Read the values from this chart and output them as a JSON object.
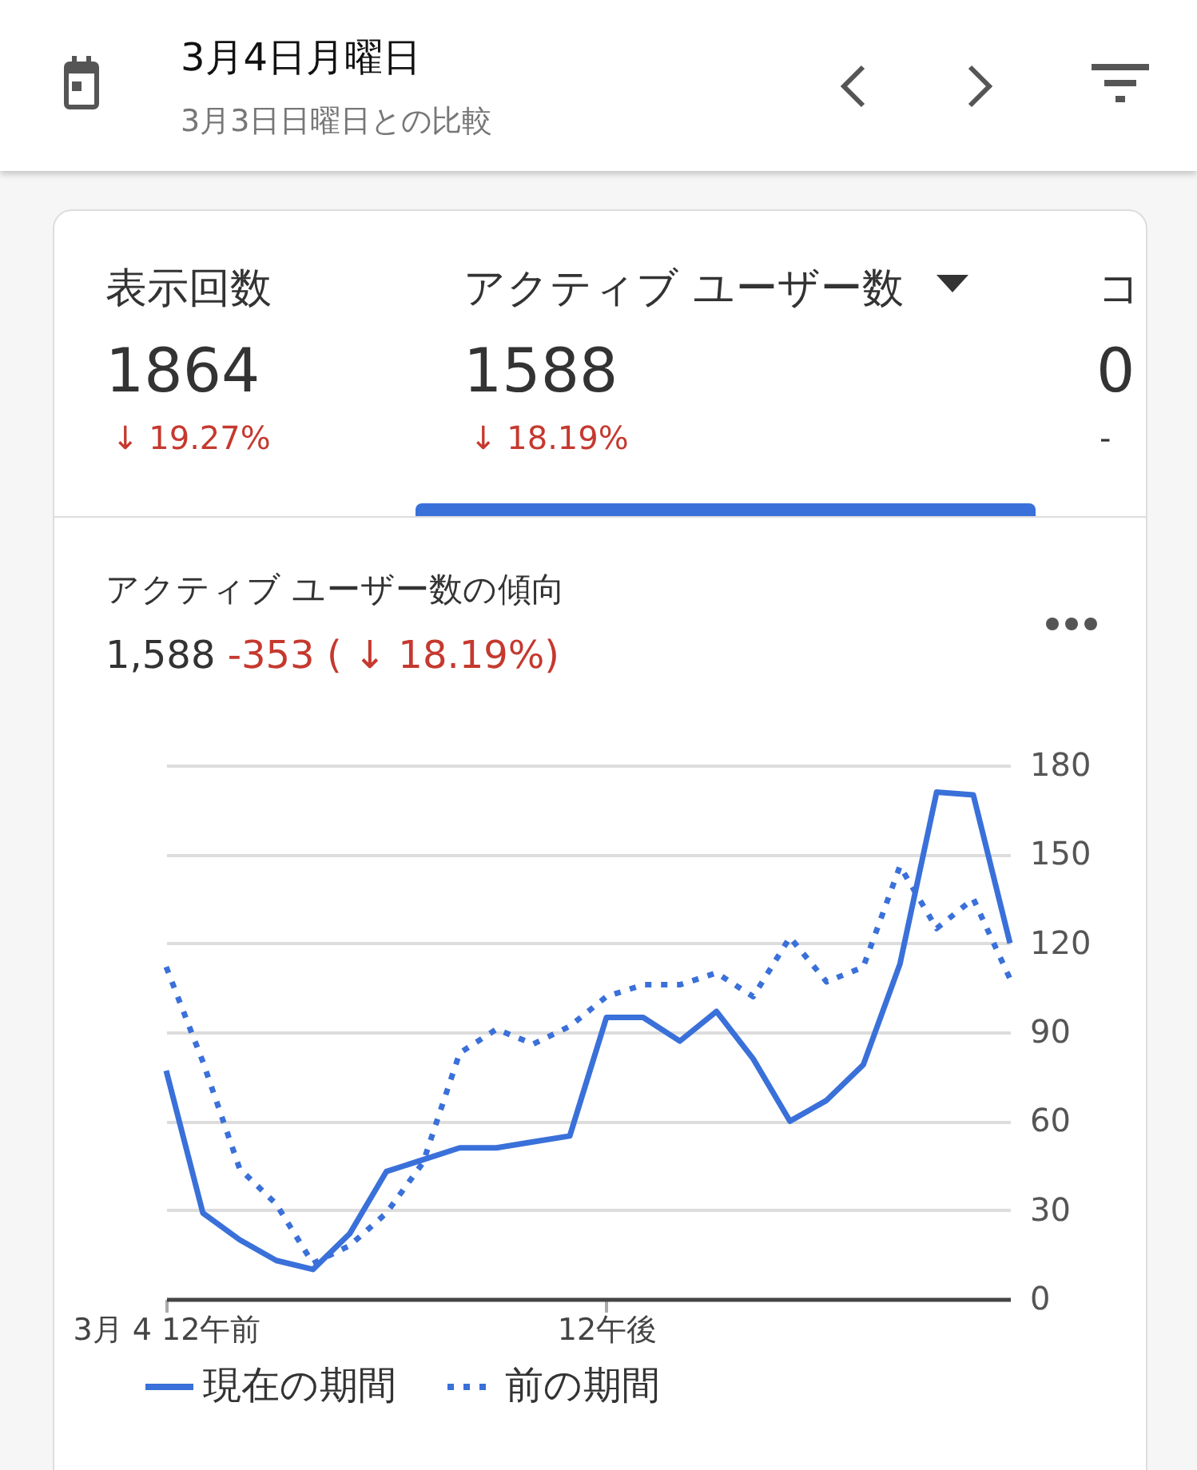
{
  "chart_data": {
    "type": "line",
    "title": "アクティブ ユーザー数の傾向",
    "subtitle": "1,588 -353 ( ↓ 18.19%)",
    "annotations": [
      "3月4日月曜日",
      "3月3日日曜日との比較",
      "表示回数",
      "1864",
      "↓ 19.27%",
      "アクティブ ユーザー数",
      "1588",
      "↓ 18.19%",
      "コ",
      "0",
      "-"
    ],
    "categories": [
      "3月 4 12午前",
      null,
      null,
      null,
      null,
      null,
      null,
      null,
      null,
      null,
      null,
      null,
      "12午後",
      null,
      null,
      null,
      null,
      null,
      null,
      null,
      null,
      null,
      null,
      null
    ],
    "series": [
      {
        "name": "現在の期間",
        "color": "#3a70d9",
        "line_style": "solid",
        "values": [
          77,
          29,
          20,
          13,
          10,
          22,
          43,
          47,
          51,
          51,
          53,
          55,
          95,
          95,
          87,
          97,
          81,
          60,
          67,
          79,
          113,
          171,
          170,
          120
        ]
      },
      {
        "name": "前の期間",
        "color": "#3a70d9",
        "line_style": "dotted",
        "values": [
          112,
          80,
          44,
          32,
          12,
          18,
          29,
          46,
          83,
          91,
          86,
          92,
          102,
          106,
          106,
          110,
          102,
          122,
          107,
          112,
          146,
          125,
          135,
          108
        ]
      }
    ],
    "ylim": [
      0,
      180
    ],
    "yticks": [
      0,
      30,
      60,
      90,
      120,
      150,
      180
    ],
    "grid": "y",
    "legend": "bottom",
    "marker": "none"
  }
}
